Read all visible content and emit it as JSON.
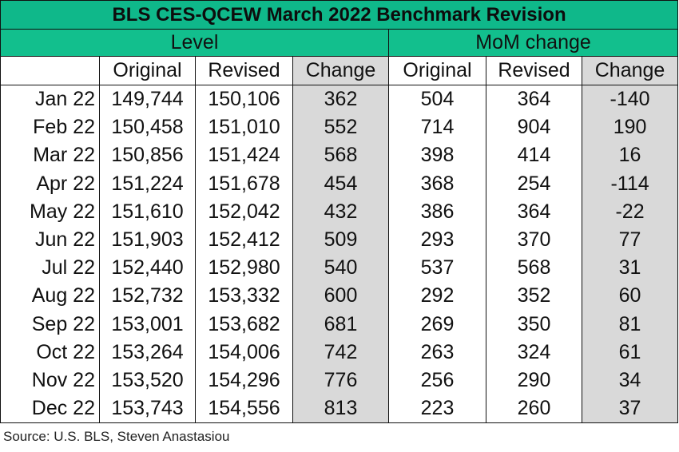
{
  "title": "BLS CES-QCEW March 2022 Benchmark Revision",
  "groups": {
    "level": "Level",
    "mom": "MoM change"
  },
  "columns": [
    "",
    "Original",
    "Revised",
    "Change",
    "Original",
    "Revised",
    "Change"
  ],
  "rows": [
    [
      "Jan 22",
      "149,744",
      "150,106",
      "362",
      "504",
      "364",
      "-140"
    ],
    [
      "Feb 22",
      "150,458",
      "151,010",
      "552",
      "714",
      "904",
      "190"
    ],
    [
      "Mar 22",
      "150,856",
      "151,424",
      "568",
      "398",
      "414",
      "16"
    ],
    [
      "Apr 22",
      "151,224",
      "151,678",
      "454",
      "368",
      "254",
      "-114"
    ],
    [
      "May 22",
      "151,610",
      "152,042",
      "432",
      "386",
      "364",
      "-22"
    ],
    [
      "Jun 22",
      "151,903",
      "152,412",
      "509",
      "293",
      "370",
      "77"
    ],
    [
      "Jul 22",
      "152,440",
      "152,980",
      "540",
      "537",
      "568",
      "31"
    ],
    [
      "Aug 22",
      "152,732",
      "153,332",
      "600",
      "292",
      "352",
      "60"
    ],
    [
      "Sep 22",
      "153,001",
      "153,682",
      "681",
      "269",
      "350",
      "81"
    ],
    [
      "Oct 22",
      "153,264",
      "154,006",
      "742",
      "263",
      "324",
      "61"
    ],
    [
      "Nov 22",
      "153,520",
      "154,296",
      "776",
      "256",
      "290",
      "34"
    ],
    [
      "Dec 22",
      "153,743",
      "154,556",
      "813",
      "223",
      "260",
      "37"
    ]
  ],
  "source": "Source: U.S. BLS, Steven Anastasiou",
  "colors": {
    "header_green": "#12bf8d",
    "change_shade": "#d9d9d9"
  }
}
